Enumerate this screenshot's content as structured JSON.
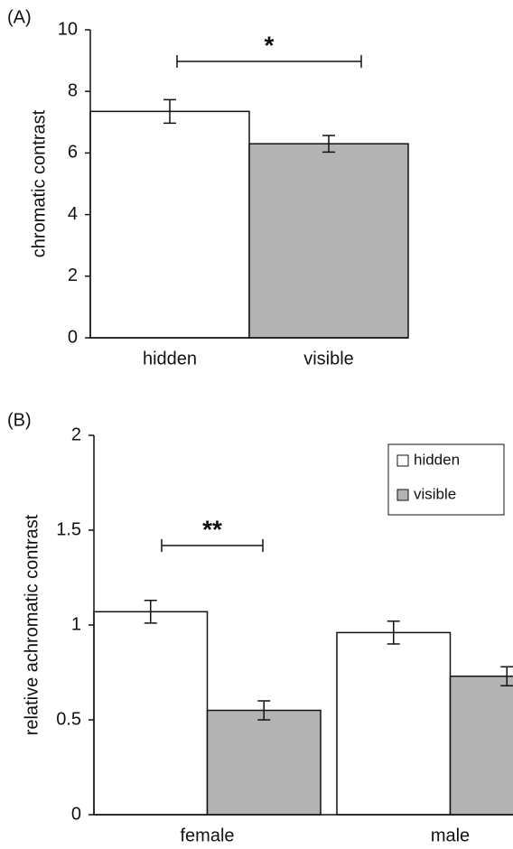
{
  "chart_data": [
    {
      "type": "bar",
      "panel_label": "(A)",
      "y_label": "chromatic contrast",
      "categories": [
        "hidden",
        "visible"
      ],
      "values": [
        7.35,
        6.3
      ],
      "errors": [
        0.38,
        0.27
      ],
      "colors": [
        "#ffffff",
        "#b3b3b3"
      ],
      "ylim": [
        0,
        10
      ],
      "yticks": [
        0,
        2,
        4,
        6,
        8,
        10
      ],
      "annotation": "*"
    },
    {
      "type": "grouped_bar",
      "panel_label": "(B)",
      "y_label": "relative achromatic contrast",
      "categories": [
        "female",
        "male"
      ],
      "series": [
        {
          "name": "hidden",
          "color": "#ffffff",
          "values": [
            1.07,
            0.96
          ],
          "errors": [
            0.06,
            0.06
          ]
        },
        {
          "name": "visible",
          "color": "#b3b3b3",
          "values": [
            0.55,
            0.73
          ],
          "errors": [
            0.05,
            0.05
          ]
        }
      ],
      "ylim": [
        0,
        2
      ],
      "yticks": [
        0,
        0.5,
        1,
        1.5,
        2
      ],
      "annotation": "**",
      "legend": "upper right"
    }
  ]
}
